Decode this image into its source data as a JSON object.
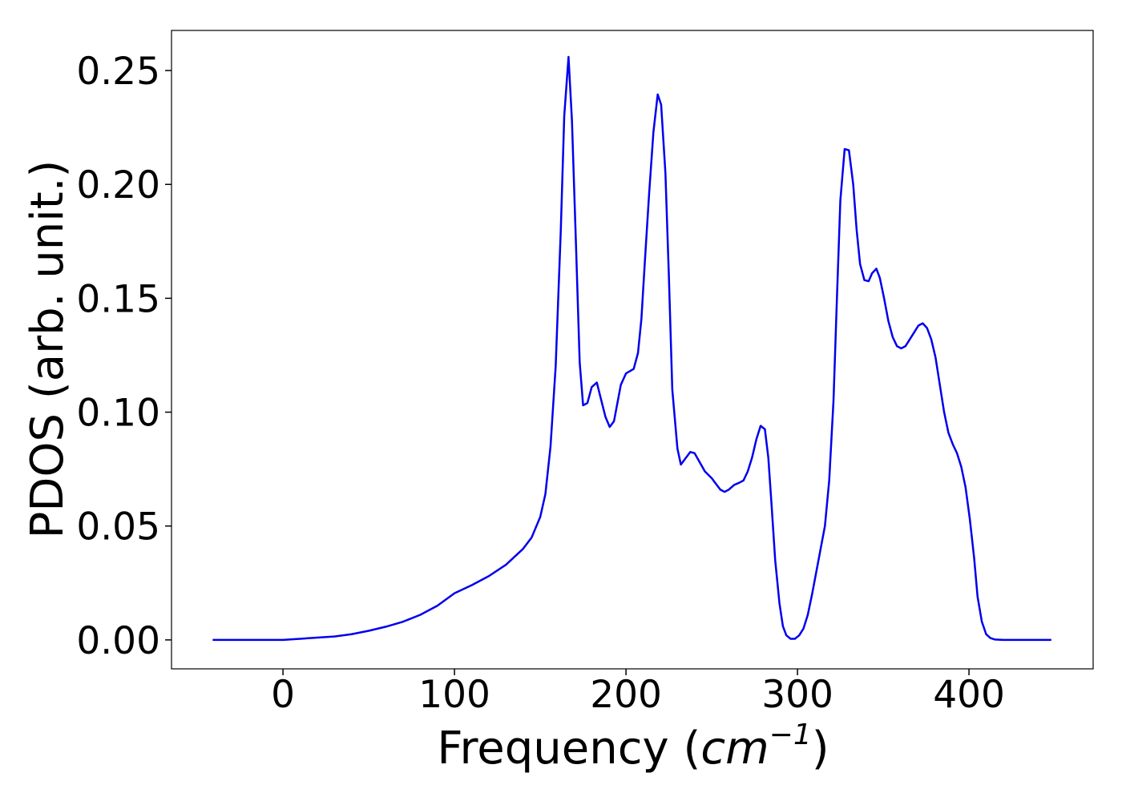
{
  "chart_data": {
    "type": "line",
    "xlabel": [
      "Frequency (",
      "cm",
      "−1",
      ")"
    ],
    "ylabel": "PDOS (arb. unit.)",
    "xlim": [
      -65,
      472.4
    ],
    "ylim": [
      -0.0127,
      0.2676
    ],
    "xticks": [
      0,
      100,
      200,
      300,
      400
    ],
    "yticks": [
      {
        "value": 0,
        "label": "0.00"
      },
      0.05,
      {
        "value": 0.1,
        "label": "0.10"
      },
      0.15,
      {
        "value": 0.2,
        "label": "0.20"
      },
      0.25
    ],
    "x": [
      -41,
      0,
      10,
      20,
      30,
      40,
      50,
      60,
      70,
      80,
      90,
      100,
      110,
      120,
      130,
      140,
      145,
      150,
      153,
      156,
      159,
      162,
      164,
      166.5,
      168.5,
      171,
      173,
      175,
      177.5,
      180,
      183,
      185,
      188,
      190.5,
      193,
      197,
      200,
      204.5,
      207,
      209,
      211,
      213.5,
      216,
      218.5,
      220.5,
      223,
      225,
      227,
      230,
      232,
      235,
      237.5,
      240,
      243,
      246,
      250,
      252,
      255,
      257.5,
      260,
      263,
      266,
      268.5,
      271,
      273.5,
      276,
      278.5,
      281,
      283,
      285,
      287,
      289.5,
      291.5,
      293.5,
      296,
      298.5,
      301,
      303.5,
      306,
      308.5,
      311,
      313.5,
      316,
      318.5,
      321,
      323,
      325,
      327.5,
      330,
      332.5,
      334.5,
      336.5,
      339,
      341.5,
      343.5,
      346,
      348,
      350.5,
      353,
      355.5,
      358,
      360.5,
      363,
      365.5,
      368,
      370.5,
      373,
      375.5,
      378,
      380.5,
      383,
      385.5,
      388,
      390.5,
      393,
      395.5,
      398,
      400.5,
      403,
      405,
      407.5,
      410,
      412.5,
      415,
      420,
      430,
      448
    ],
    "series": [
      {
        "name": "PDOS",
        "color": "#0000ee",
        "values": [
          0,
          0,
          0.0005,
          0.001,
          0.0015,
          0.0025,
          0.004,
          0.0058,
          0.008,
          0.011,
          0.015,
          0.0205,
          0.024,
          0.028,
          0.033,
          0.04,
          0.045,
          0.054,
          0.064,
          0.085,
          0.12,
          0.18,
          0.23,
          0.256,
          0.228,
          0.17,
          0.122,
          0.103,
          0.104,
          0.111,
          0.113,
          0.107,
          0.098,
          0.0935,
          0.096,
          0.112,
          0.117,
          0.119,
          0.126,
          0.141,
          0.166,
          0.196,
          0.223,
          0.2395,
          0.235,
          0.205,
          0.16,
          0.11,
          0.084,
          0.077,
          0.08,
          0.0825,
          0.082,
          0.078,
          0.074,
          0.071,
          0.069,
          0.066,
          0.065,
          0.066,
          0.068,
          0.069,
          0.07,
          0.074,
          0.08,
          0.088,
          0.094,
          0.0925,
          0.08,
          0.058,
          0.035,
          0.016,
          0.006,
          0.002,
          0.0005,
          0.0005,
          0.002,
          0.005,
          0.011,
          0.02,
          0.03,
          0.04,
          0.05,
          0.07,
          0.105,
          0.15,
          0.193,
          0.2155,
          0.215,
          0.2,
          0.18,
          0.165,
          0.158,
          0.1575,
          0.161,
          0.163,
          0.159,
          0.15,
          0.14,
          0.133,
          0.129,
          0.128,
          0.129,
          0.132,
          0.135,
          0.138,
          0.139,
          0.137,
          0.132,
          0.124,
          0.112,
          0.1,
          0.091,
          0.086,
          0.082,
          0.076,
          0.067,
          0.053,
          0.036,
          0.019,
          0.008,
          0.0025,
          0.0008,
          0.0002,
          0,
          0,
          0
        ]
      }
    ]
  }
}
